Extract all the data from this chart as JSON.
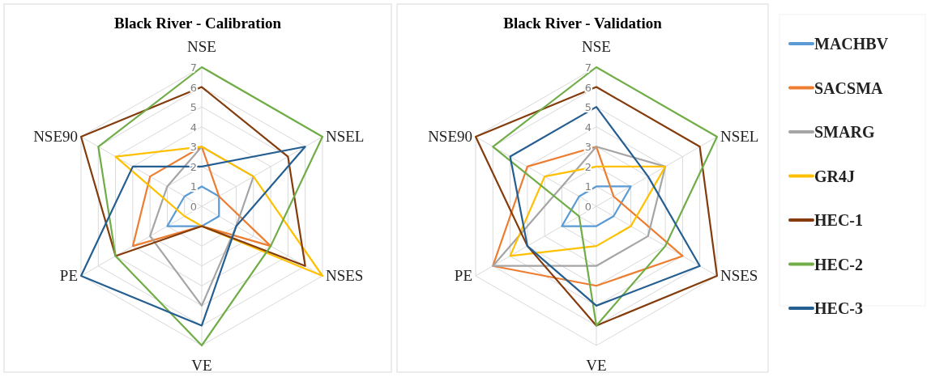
{
  "chart_data": [
    {
      "type": "radar",
      "title": "Black River - Calibration",
      "categories": [
        "NSE",
        "NSEL",
        "NSES",
        "VE",
        "PE",
        "NSE90"
      ],
      "ylim": [
        0,
        7
      ],
      "yticks": [
        0,
        1,
        2,
        3,
        4,
        5,
        6,
        7
      ],
      "grid": true,
      "series": [
        {
          "color": "#5b9bd5",
          "values": [
            1,
            1,
            1,
            1,
            2,
            1
          ]
        },
        {
          "color": "#ed7d31",
          "values": [
            3,
            1,
            4,
            1,
            4,
            3
          ]
        },
        {
          "color": "#a5a5a5",
          "values": [
            3,
            3,
            2,
            5,
            3,
            2
          ]
        },
        {
          "color": "#ffc000",
          "values": [
            3,
            3,
            7,
            1,
            1,
            5
          ]
        },
        {
          "color": "#843c0c",
          "values": [
            6,
            5,
            6,
            1,
            5,
            7
          ]
        },
        {
          "color": "#70ad47",
          "values": [
            7,
            7,
            4,
            7,
            5,
            6
          ]
        },
        {
          "color": "#255e91",
          "values": [
            2,
            6,
            2,
            6,
            7,
            4
          ]
        }
      ]
    },
    {
      "type": "radar",
      "title": "Black River - Validation",
      "categories": [
        "NSE",
        "NSEL",
        "NSES",
        "VE",
        "PE",
        "NSE90"
      ],
      "ylim": [
        0,
        7
      ],
      "yticks": [
        0,
        1,
        2,
        3,
        4,
        5,
        6,
        7
      ],
      "grid": true,
      "legend": "right",
      "series": [
        {
          "name": "MACHBV",
          "color": "#5b9bd5",
          "values": [
            1,
            2,
            1,
            1,
            2,
            1
          ]
        },
        {
          "name": "SACSMA",
          "color": "#ed7d31",
          "values": [
            3,
            1,
            5,
            4,
            6,
            4
          ]
        },
        {
          "name": "SMARG",
          "color": "#a5a5a5",
          "values": [
            3,
            4,
            3,
            3,
            6,
            2
          ]
        },
        {
          "name": "GR4J",
          "color": "#ffc000",
          "values": [
            2,
            4,
            2,
            2,
            5,
            3
          ]
        },
        {
          "name": "HEC-1",
          "color": "#843c0c",
          "values": [
            6,
            6,
            7,
            6,
            4,
            7
          ]
        },
        {
          "name": "HEC-2",
          "color": "#70ad47",
          "values": [
            7,
            7,
            4,
            6,
            1,
            6
          ]
        },
        {
          "name": "HEC-3",
          "color": "#255e91",
          "values": [
            5,
            3,
            6,
            5,
            4,
            5
          ]
        }
      ]
    }
  ]
}
